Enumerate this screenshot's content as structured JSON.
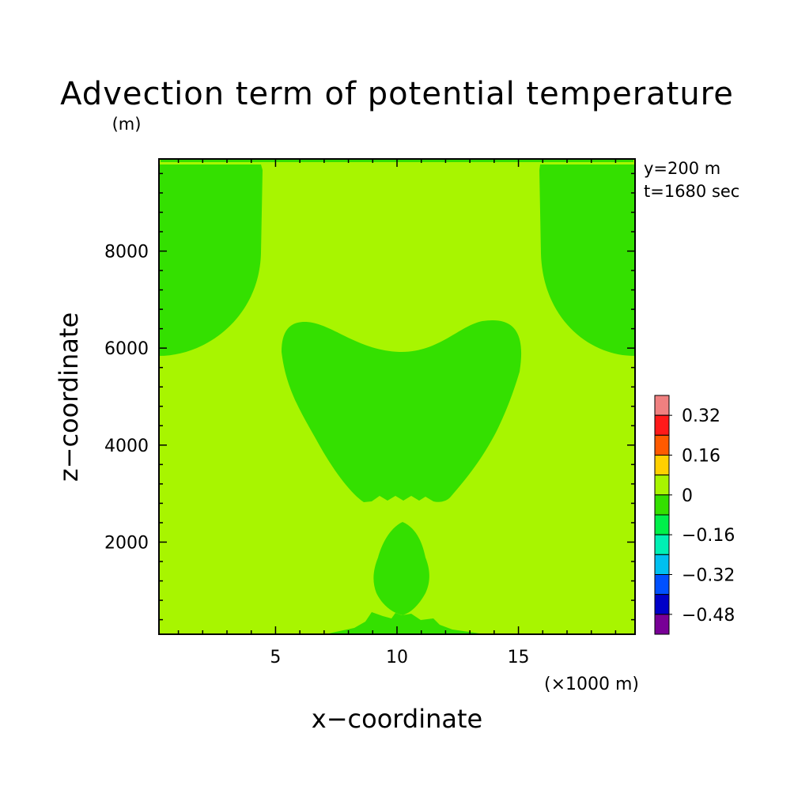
{
  "chart_data": {
    "type": "heatmap",
    "title": "Advection term of potential temperature",
    "units": "(m)",
    "xlabel": "x−coordinate",
    "ylabel": "z−coordinate",
    "x_unit_label": "(×1000 m)",
    "annotations": [
      "y=200 m",
      "t=1680 sec"
    ],
    "xlim": [
      0.2,
      19.8
    ],
    "ylim": [
      100,
      9900
    ],
    "x_ticks": [
      5,
      10,
      15
    ],
    "x_tick_labels": [
      "5",
      "10",
      "15"
    ],
    "y_ticks": [
      2000,
      4000,
      6000,
      8000
    ],
    "y_tick_labels": [
      "2000",
      "4000",
      "6000",
      "8000"
    ],
    "background_level": "0 to 0.08",
    "contour_regions": [
      {
        "name": "upper-left",
        "level": "-0.08 to 0",
        "x_range": [
          0.2,
          4.4
        ],
        "z_range": [
          5850,
          9900
        ]
      },
      {
        "name": "upper-right",
        "level": "-0.08 to 0",
        "x_range": [
          15.8,
          19.8
        ],
        "z_range": [
          5850,
          9900
        ]
      },
      {
        "name": "central-cell",
        "level": "-0.08 to 0",
        "x_range": [
          4.9,
          15.1
        ],
        "z_range": [
          2780,
          6600
        ]
      },
      {
        "name": "lower-cell",
        "level": "-0.08 to 0",
        "x_range": [
          9.0,
          11.3
        ],
        "z_range": [
          450,
          2400
        ]
      },
      {
        "name": "surface-band",
        "level": "-0.08 to 0",
        "x_range": [
          7.0,
          13.5
        ],
        "z_range": [
          100,
          500
        ]
      }
    ],
    "colorbar": {
      "levels": [
        "0.32",
        "0.16",
        "0",
        "−0.16",
        "−0.32",
        "−0.48"
      ],
      "colors": [
        "#f08080",
        "#ff1a1a",
        "#ff5a00",
        "#ffd000",
        "#a8f500",
        "#34e000",
        "#00f04a",
        "#00f0b4",
        "#00c0f0",
        "#0050ff",
        "#0000c8",
        "#780096"
      ]
    }
  }
}
